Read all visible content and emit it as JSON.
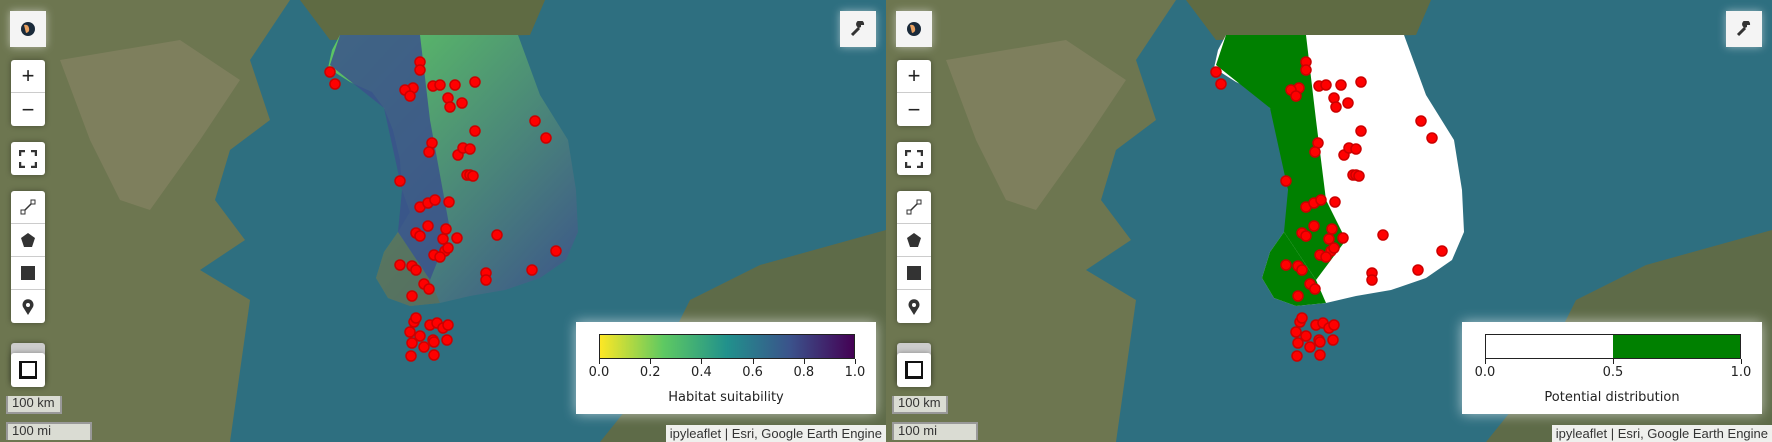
{
  "panels": [
    {
      "layer": "habitat-suitability",
      "legend": {
        "title": "Habitat suitability",
        "ticks": [
          "0.0",
          "0.2",
          "0.4",
          "0.6",
          "0.8",
          "1.0"
        ],
        "colormap": [
          "#fde725",
          "#5ec962",
          "#21918c",
          "#3b528b",
          "#440154"
        ]
      }
    },
    {
      "layer": "potential-distribution",
      "legend": {
        "title": "Potential distribution",
        "ticks": [
          "0.0",
          "0.5",
          "1.0"
        ],
        "colormap": [
          "#ffffff",
          "#008000"
        ]
      }
    }
  ],
  "controls": {
    "basemap_icon": "globe-icon",
    "zoom_in": "+",
    "zoom_out": "−",
    "fullscreen_icon": "fullscreen-icon",
    "draw_tools": [
      "polyline-icon",
      "polygon-icon",
      "rectangle-icon",
      "marker-icon"
    ],
    "measure_icon": "measure-icon",
    "settings_icon": "wrench-icon"
  },
  "scale": {
    "km": "100 km",
    "mi": "100 mi"
  },
  "attribution": "ipyleaflet | Esri, Google Earth Engine",
  "colors": {
    "ocean": "#2e6f80",
    "points": "#ff0000"
  }
}
